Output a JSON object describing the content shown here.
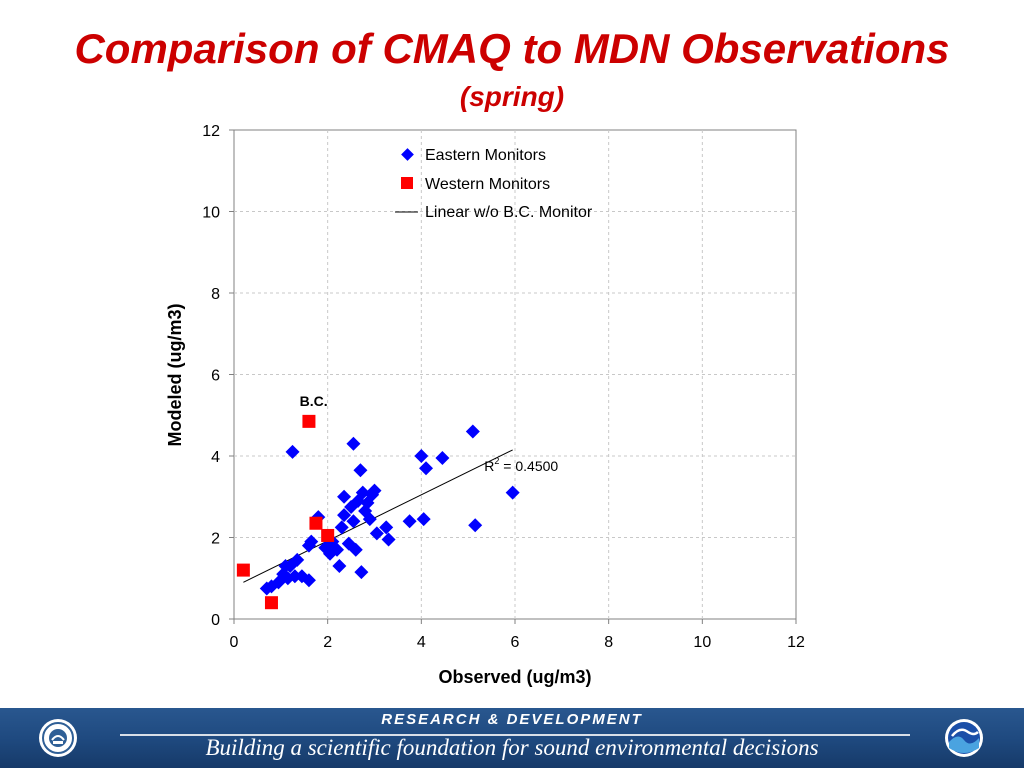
{
  "slide": {
    "title": "Comparison of CMAQ to MDN Observations",
    "subtitle": "(spring)"
  },
  "footer": {
    "heading": "RESEARCH & DEVELOPMENT",
    "tagline": "Building a scientific foundation for sound environmental decisions",
    "left_logo": "epa-seal-icon",
    "right_logo": "noaa-logo-icon",
    "band_color": "#1f4a80"
  },
  "chart_data": {
    "type": "scatter",
    "xlabel": "Observed (ug/m3)",
    "ylabel": "Modeled (ug/m3)",
    "xlim": [
      0,
      12
    ],
    "ylim": [
      0,
      12
    ],
    "xticks": [
      0,
      2,
      4,
      6,
      8,
      10,
      12
    ],
    "yticks": [
      0,
      2,
      4,
      6,
      8,
      10,
      12
    ],
    "grid": true,
    "legend_position": "top-right",
    "series": [
      {
        "name": "Eastern Monitors",
        "marker": "diamond",
        "color": "#0000ff",
        "points": [
          [
            0.7,
            0.75
          ],
          [
            0.8,
            0.8
          ],
          [
            0.95,
            0.9
          ],
          [
            1.05,
            1.1
          ],
          [
            1.1,
            1.3
          ],
          [
            1.2,
            1.3
          ],
          [
            1.15,
            1.0
          ],
          [
            1.3,
            1.05
          ],
          [
            1.35,
            1.45
          ],
          [
            1.45,
            1.05
          ],
          [
            1.6,
            0.95
          ],
          [
            1.6,
            1.8
          ],
          [
            1.65,
            1.9
          ],
          [
            1.8,
            2.5
          ],
          [
            1.25,
            4.1
          ],
          [
            1.95,
            1.75
          ],
          [
            2.05,
            1.6
          ],
          [
            2.1,
            1.9
          ],
          [
            2.2,
            1.7
          ],
          [
            2.25,
            1.3
          ],
          [
            2.3,
            2.25
          ],
          [
            2.35,
            2.55
          ],
          [
            2.35,
            3.0
          ],
          [
            2.45,
            1.85
          ],
          [
            2.5,
            2.75
          ],
          [
            2.55,
            2.4
          ],
          [
            2.6,
            1.7
          ],
          [
            2.65,
            2.9
          ],
          [
            2.7,
            3.65
          ],
          [
            2.72,
            1.15
          ],
          [
            2.75,
            3.1
          ],
          [
            2.8,
            2.65
          ],
          [
            2.85,
            2.85
          ],
          [
            2.9,
            2.45
          ],
          [
            2.95,
            3.05
          ],
          [
            3.0,
            3.15
          ],
          [
            3.05,
            2.1
          ],
          [
            3.25,
            2.25
          ],
          [
            3.3,
            1.95
          ],
          [
            2.55,
            4.3
          ],
          [
            3.75,
            2.4
          ],
          [
            4.0,
            4.0
          ],
          [
            4.05,
            2.45
          ],
          [
            4.1,
            3.7
          ],
          [
            4.45,
            3.95
          ],
          [
            5.1,
            4.6
          ],
          [
            5.15,
            2.3
          ],
          [
            5.95,
            3.1
          ]
        ]
      },
      {
        "name": "Western Monitors",
        "marker": "square",
        "color": "#ff0000",
        "points": [
          [
            0.2,
            1.2
          ],
          [
            0.8,
            0.4
          ],
          [
            1.6,
            4.85
          ],
          [
            1.75,
            2.35
          ],
          [
            2.0,
            2.05
          ]
        ]
      },
      {
        "name": "Linear w/o B.C. Monitor",
        "type": "line",
        "color": "#000000",
        "from": [
          0.2,
          0.9
        ],
        "to": [
          5.95,
          4.15
        ]
      }
    ],
    "annotations": [
      {
        "text": "B.C.",
        "x": 1.7,
        "y": 5.35
      },
      {
        "text": "R",
        "sup": "2",
        "rest": " = 0.4500",
        "x": 5.6,
        "y": 3.75
      }
    ]
  }
}
